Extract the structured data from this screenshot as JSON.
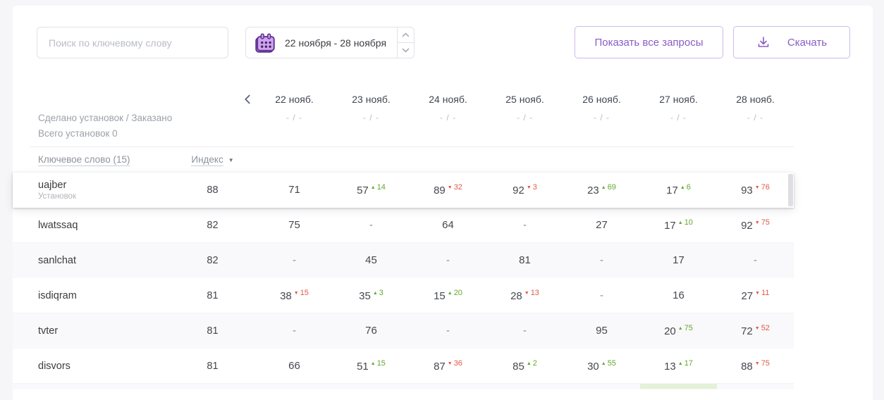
{
  "toolbar": {
    "search_placeholder": "Поиск по ключевому слову",
    "date_range": "22 ноября - 28 ноября",
    "show_all_button": "Показать все запросы",
    "download_button": "Скачать"
  },
  "summary": {
    "installs_line": "Сделано установок / Заказано",
    "total_line": "Всего установок 0",
    "per_date_placeholder": "- / -"
  },
  "table": {
    "keyword_header": "Ключевое слово (15)",
    "index_header": "Индекс",
    "sort_icon": "▼",
    "dates": [
      "22 нояб.",
      "23 нояб.",
      "24 нояб.",
      "25 нояб.",
      "26 нояб.",
      "27 нояб.",
      "28 нояб."
    ],
    "rows": [
      {
        "keyword": "uajber",
        "subtitle": "Установок",
        "index": "88",
        "highlighted": true,
        "cells": [
          {
            "v": "71"
          },
          {
            "v": "57",
            "delta": "14",
            "dir": "up"
          },
          {
            "v": "89",
            "delta": "32",
            "dir": "down"
          },
          {
            "v": "92",
            "delta": "3",
            "dir": "down"
          },
          {
            "v": "23",
            "delta": "69",
            "dir": "up"
          },
          {
            "v": "17",
            "delta": "6",
            "dir": "up"
          },
          {
            "v": "93",
            "delta": "76",
            "dir": "down"
          }
        ]
      },
      {
        "keyword": "lwatssaq",
        "index": "82",
        "cells": [
          {
            "v": "75"
          },
          {
            "v": "-"
          },
          {
            "v": "64"
          },
          {
            "v": "-"
          },
          {
            "v": "27"
          },
          {
            "v": "17",
            "delta": "10",
            "dir": "up"
          },
          {
            "v": "92",
            "delta": "75",
            "dir": "down"
          }
        ]
      },
      {
        "keyword": "sanlchat",
        "index": "82",
        "cells": [
          {
            "v": "-"
          },
          {
            "v": "45"
          },
          {
            "v": "-"
          },
          {
            "v": "81"
          },
          {
            "v": "-"
          },
          {
            "v": "17"
          },
          {
            "v": "-"
          }
        ]
      },
      {
        "keyword": "isdiqram",
        "index": "81",
        "cells": [
          {
            "v": "38",
            "delta": "15",
            "dir": "down"
          },
          {
            "v": "35",
            "delta": "3",
            "dir": "up"
          },
          {
            "v": "15",
            "delta": "20",
            "dir": "up"
          },
          {
            "v": "28",
            "delta": "13",
            "dir": "down"
          },
          {
            "v": "-"
          },
          {
            "v": "16"
          },
          {
            "v": "27",
            "delta": "11",
            "dir": "down"
          }
        ]
      },
      {
        "keyword": "tvter",
        "index": "81",
        "cells": [
          {
            "v": "-"
          },
          {
            "v": "76"
          },
          {
            "v": "-"
          },
          {
            "v": "-"
          },
          {
            "v": "95"
          },
          {
            "v": "20",
            "delta": "75",
            "dir": "up"
          },
          {
            "v": "72",
            "delta": "52",
            "dir": "down"
          }
        ]
      },
      {
        "keyword": "disvors",
        "index": "81",
        "cells": [
          {
            "v": "66"
          },
          {
            "v": "51",
            "delta": "15",
            "dir": "up"
          },
          {
            "v": "87",
            "delta": "36",
            "dir": "down"
          },
          {
            "v": "85",
            "delta": "2",
            "dir": "up"
          },
          {
            "v": "30",
            "delta": "55",
            "dir": "up"
          },
          {
            "v": "13",
            "delta": "17",
            "dir": "up"
          },
          {
            "v": "88",
            "delta": "75",
            "dir": "down"
          }
        ]
      }
    ],
    "partial_row": {
      "highlight_col": 5,
      "highlight_color": "#e4f1d7"
    }
  },
  "colors": {
    "accent_purple": "#8a5cc6",
    "up_green": "#64a72d",
    "down_red": "#e05a48",
    "row_tint": "#f9f8fb"
  }
}
